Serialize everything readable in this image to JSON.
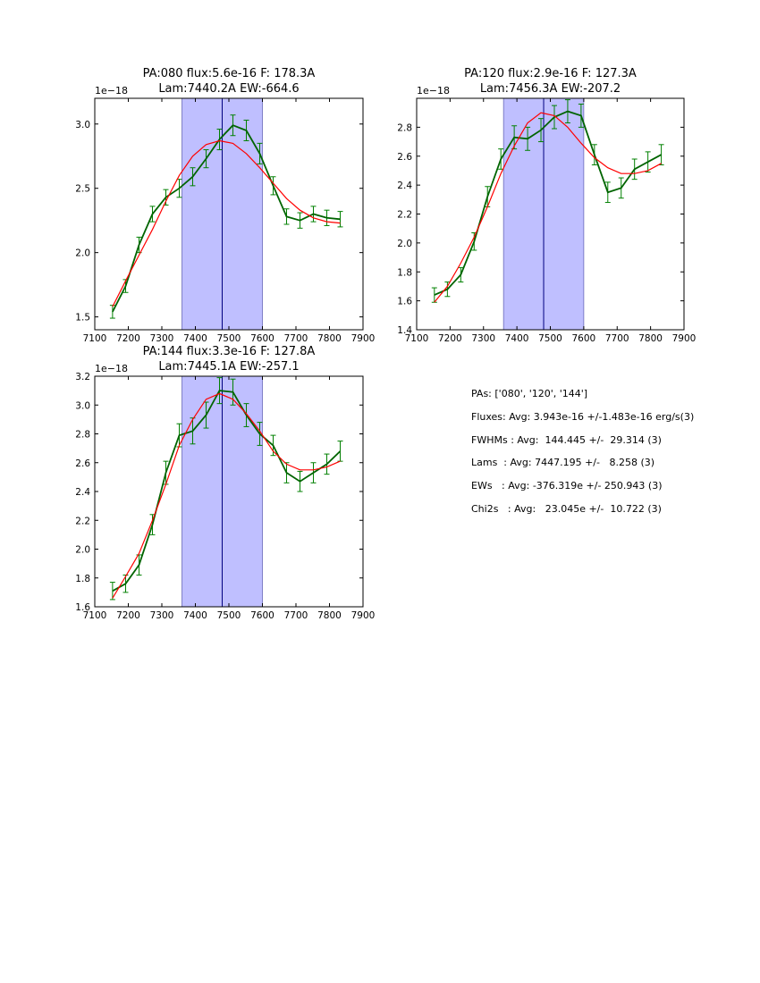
{
  "chart_data": [
    {
      "type": "line",
      "title_line1": "PA:080 flux:5.6e-16 F: 178.3A",
      "title_line2": "Lam:7440.2A EW:-664.6",
      "offset_text": "1e−18",
      "xlim": [
        7100,
        7900
      ],
      "ylim": [
        1.4,
        3.2
      ],
      "xticks": [
        7100,
        7200,
        7300,
        7400,
        7500,
        7600,
        7700,
        7800,
        7900
      ],
      "yticks": [
        1.5,
        2.0,
        2.5,
        3.0
      ],
      "ytick_labels": [
        "1.5",
        "2.0",
        "2.5",
        "3.0"
      ],
      "span": [
        7360,
        7600
      ],
      "vline": 7480,
      "series": [
        {
          "color": "#006400",
          "x": [
            7153,
            7192,
            7232,
            7272,
            7312,
            7352,
            7392,
            7432,
            7472,
            7512,
            7552,
            7592,
            7632,
            7672,
            7712,
            7752,
            7792,
            7832
          ],
          "y": [
            1.54,
            1.74,
            2.06,
            2.3,
            2.43,
            2.5,
            2.59,
            2.73,
            2.88,
            2.99,
            2.95,
            2.77,
            2.52,
            2.28,
            2.25,
            2.3,
            2.27,
            2.26
          ],
          "yerr": [
            0.05,
            0.05,
            0.06,
            0.06,
            0.06,
            0.07,
            0.07,
            0.07,
            0.08,
            0.08,
            0.08,
            0.08,
            0.07,
            0.06,
            0.06,
            0.06,
            0.06,
            0.06
          ]
        },
        {
          "color": "#ff0000",
          "x": [
            7153,
            7192,
            7232,
            7272,
            7312,
            7352,
            7392,
            7432,
            7472,
            7512,
            7552,
            7592,
            7632,
            7672,
            7712,
            7752,
            7792,
            7832
          ],
          "y": [
            1.58,
            1.78,
            1.98,
            2.18,
            2.4,
            2.6,
            2.75,
            2.84,
            2.87,
            2.85,
            2.77,
            2.66,
            2.54,
            2.42,
            2.33,
            2.27,
            2.24,
            2.23
          ]
        }
      ]
    },
    {
      "type": "line",
      "title_line1": "PA:120 flux:2.9e-16 F: 127.3A",
      "title_line2": "Lam:7456.3A EW:-207.2",
      "offset_text": "1e−18",
      "xlim": [
        7100,
        7900
      ],
      "ylim": [
        1.4,
        3.0
      ],
      "xticks": [
        7100,
        7200,
        7300,
        7400,
        7500,
        7600,
        7700,
        7800,
        7900
      ],
      "yticks": [
        1.4,
        1.6,
        1.8,
        2.0,
        2.2,
        2.4,
        2.6,
        2.8
      ],
      "ytick_labels": [
        "1.4",
        "1.6",
        "1.8",
        "2.0",
        "2.2",
        "2.4",
        "2.6",
        "2.8"
      ],
      "span": [
        7360,
        7600
      ],
      "vline": 7480,
      "series": [
        {
          "color": "#006400",
          "x": [
            7153,
            7192,
            7232,
            7272,
            7312,
            7352,
            7392,
            7432,
            7472,
            7512,
            7552,
            7592,
            7632,
            7672,
            7712,
            7752,
            7792,
            7832
          ],
          "y": [
            1.64,
            1.68,
            1.78,
            2.01,
            2.32,
            2.58,
            2.73,
            2.72,
            2.78,
            2.87,
            2.91,
            2.88,
            2.61,
            2.35,
            2.38,
            2.51,
            2.56,
            2.61
          ],
          "yerr": [
            0.05,
            0.05,
            0.05,
            0.06,
            0.07,
            0.07,
            0.08,
            0.08,
            0.08,
            0.08,
            0.08,
            0.08,
            0.07,
            0.07,
            0.07,
            0.07,
            0.07,
            0.07
          ]
        },
        {
          "color": "#ff0000",
          "x": [
            7153,
            7192,
            7232,
            7272,
            7312,
            7352,
            7392,
            7432,
            7472,
            7512,
            7552,
            7592,
            7632,
            7672,
            7712,
            7752,
            7792,
            7832
          ],
          "y": [
            1.59,
            1.7,
            1.86,
            2.04,
            2.25,
            2.48,
            2.67,
            2.83,
            2.9,
            2.88,
            2.8,
            2.69,
            2.59,
            2.52,
            2.48,
            2.48,
            2.5,
            2.55
          ]
        }
      ]
    },
    {
      "type": "line",
      "title_line1": "PA:144 flux:3.3e-16 F: 127.8A",
      "title_line2": "Lam:7445.1A EW:-257.1",
      "offset_text": "1e−18",
      "xlim": [
        7100,
        7900
      ],
      "ylim": [
        1.6,
        3.2
      ],
      "xticks": [
        7100,
        7200,
        7300,
        7400,
        7500,
        7600,
        7700,
        7800,
        7900
      ],
      "yticks": [
        1.6,
        1.8,
        2.0,
        2.2,
        2.4,
        2.6,
        2.8,
        3.0,
        3.2
      ],
      "ytick_labels": [
        "1.6",
        "1.8",
        "2.0",
        "2.2",
        "2.4",
        "2.6",
        "2.8",
        "3.0",
        "3.2"
      ],
      "span": [
        7360,
        7600
      ],
      "vline": 7480,
      "series": [
        {
          "color": "#006400",
          "x": [
            7153,
            7192,
            7232,
            7272,
            7312,
            7352,
            7392,
            7432,
            7472,
            7512,
            7552,
            7592,
            7632,
            7672,
            7712,
            7752,
            7792,
            7832
          ],
          "y": [
            1.71,
            1.76,
            1.89,
            2.17,
            2.53,
            2.79,
            2.82,
            2.93,
            3.1,
            3.09,
            2.93,
            2.8,
            2.72,
            2.53,
            2.47,
            2.53,
            2.59,
            2.68
          ],
          "yerr": [
            0.06,
            0.06,
            0.07,
            0.07,
            0.08,
            0.08,
            0.09,
            0.09,
            0.09,
            0.09,
            0.08,
            0.08,
            0.07,
            0.07,
            0.07,
            0.07,
            0.07,
            0.07
          ]
        },
        {
          "color": "#ff0000",
          "x": [
            7153,
            7192,
            7232,
            7272,
            7312,
            7352,
            7392,
            7432,
            7472,
            7512,
            7552,
            7592,
            7632,
            7672,
            7712,
            7752,
            7792,
            7832
          ],
          "y": [
            1.66,
            1.81,
            1.97,
            2.2,
            2.45,
            2.72,
            2.9,
            3.04,
            3.08,
            3.04,
            2.94,
            2.82,
            2.68,
            2.59,
            2.55,
            2.55,
            2.57,
            2.61
          ]
        }
      ]
    }
  ],
  "summary": {
    "pas": "PAs: ['080', '120', '144']",
    "fluxes": "Fluxes: Avg: 3.943e-16 +/-1.483e-16 erg/s(3)",
    "fwhms": "FWHMs : Avg:  144.445 +/-  29.314 (3)",
    "lams": "Lams  : Avg: 7447.195 +/-   8.258 (3)",
    "ews": "EWs   : Avg: -376.319e +/- 250.943 (3)",
    "chi2s": "Chi2s   : Avg:   23.045e +/-  10.722 (3)"
  }
}
